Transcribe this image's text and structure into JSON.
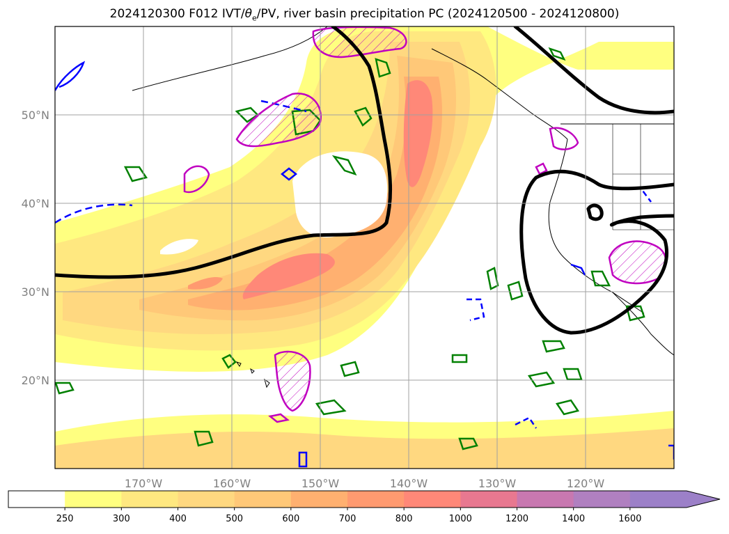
{
  "title": {
    "prefix": "2024120300 F012 IVT/",
    "theta_sym": "θ",
    "theta_sub": "e",
    "suffix": "/PV, river basin precipitation PC (2024120500 - 2024120800)"
  },
  "axes": {
    "lat_labels": [
      "50°N",
      "40°N",
      "30°N",
      "20°N"
    ],
    "lon_labels": [
      "170°W",
      "160°W",
      "150°W",
      "140°W",
      "130°W",
      "120°W"
    ],
    "lat_values": [
      50,
      40,
      30,
      20
    ],
    "lon_values": [
      -170,
      -160,
      -150,
      -140,
      -130,
      -120
    ],
    "lon_range": [
      -180,
      -110
    ],
    "lat_range": [
      10,
      60
    ],
    "grid": true
  },
  "colorbar": {
    "levels": [
      "250",
      "300",
      "400",
      "500",
      "600",
      "700",
      "800",
      "1000",
      "1200",
      "1400",
      "1600"
    ],
    "colors": [
      "#ffffff",
      "#ffff80",
      "#ffe880",
      "#ffd880",
      "#ffc878",
      "#ffb070",
      "#ff9a70",
      "#ff8878",
      "#e87890",
      "#c878b0",
      "#b080c0",
      "#9c80c8"
    ],
    "extend": "max"
  },
  "colors": {
    "jet_contour": "#000000",
    "pv_positive": "#0000ff",
    "theta_e": "#008000",
    "precip_pc": "#c000c0"
  }
}
